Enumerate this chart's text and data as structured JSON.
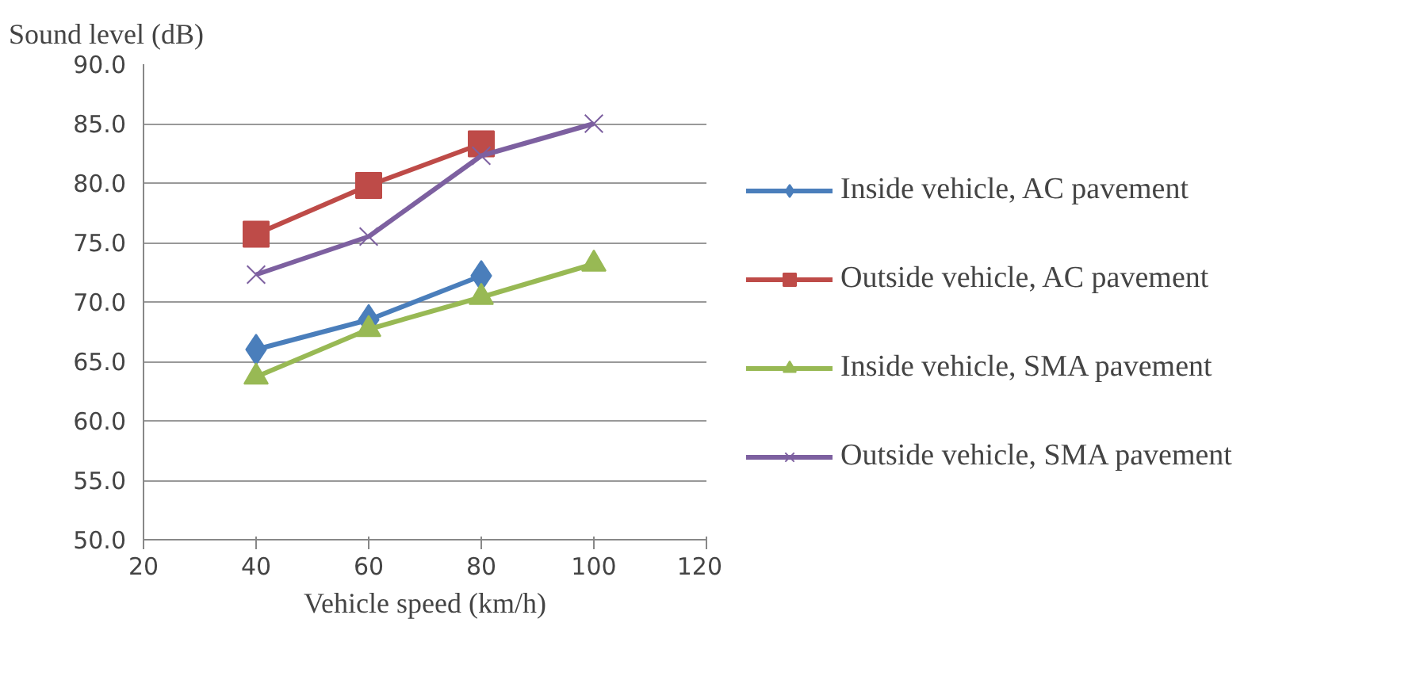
{
  "chart_data": {
    "type": "line",
    "xlabel": "Vehicle speed (km/h)",
    "ylabel": "Sound level (dB)",
    "x": [
      40,
      60,
      80,
      100
    ],
    "series": [
      {
        "name": "Inside vehicle, AC pavement",
        "color": "#4a7ebb",
        "marker": "diamond",
        "values": [
          66.0,
          68.5,
          72.2,
          null
        ]
      },
      {
        "name": "Outside vehicle, AC pavement",
        "color": "#be4b48",
        "marker": "square",
        "values": [
          75.7,
          79.8,
          83.3,
          null
        ]
      },
      {
        "name": "Inside vehicle, SMA pavement",
        "color": "#98b954",
        "marker": "triangle",
        "values": [
          63.7,
          67.7,
          70.4,
          73.2
        ]
      },
      {
        "name": "Outside vehicle, SMA pavement",
        "color": "#7d60a0",
        "marker": "cross",
        "values": [
          72.3,
          75.5,
          82.3,
          85.0
        ]
      }
    ],
    "xlim": [
      20,
      120
    ],
    "xticks": [
      20,
      40,
      60,
      80,
      100,
      120
    ],
    "ylim": [
      50,
      90
    ],
    "yticks": [
      {
        "value": 50,
        "label": "50.0"
      },
      {
        "value": 55,
        "label": "55.0"
      },
      {
        "value": 60,
        "label": "60.0"
      },
      {
        "value": 65,
        "label": "65.0"
      },
      {
        "value": 70,
        "label": "70.0"
      },
      {
        "value": 75,
        "label": "75.0"
      },
      {
        "value": 80,
        "label": "80.0"
      },
      {
        "value": 85,
        "label": "85.0"
      },
      {
        "value": 90,
        "label": "90.0"
      }
    ],
    "grid": "y",
    "legend": "right"
  }
}
